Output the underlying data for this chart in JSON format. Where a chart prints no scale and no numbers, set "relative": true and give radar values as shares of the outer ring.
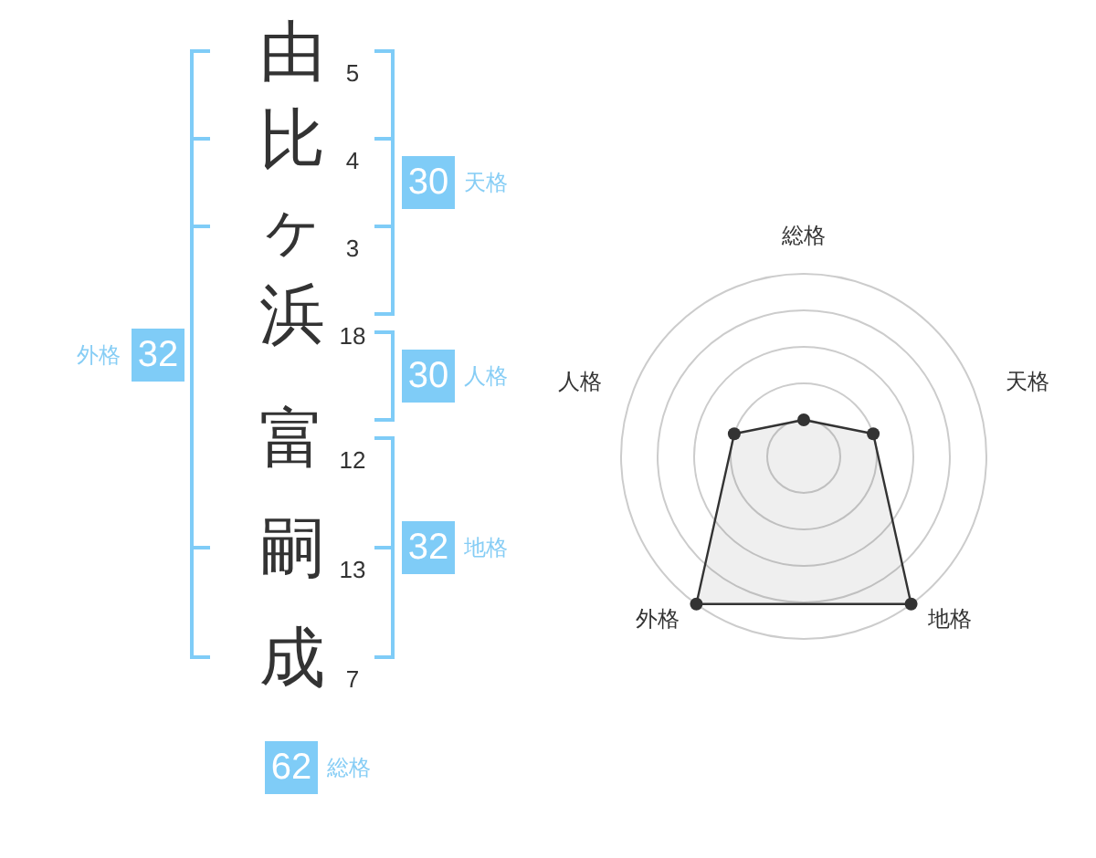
{
  "chart_data": [
    {
      "type": "other",
      "categories": [
        "由",
        "比",
        "ヶ",
        "浜",
        "富",
        "嗣",
        "成"
      ],
      "values": [
        5,
        4,
        3,
        18,
        12,
        13,
        7
      ],
      "data_labels": true,
      "annotations": [
        "30",
        "天格",
        "30",
        "人格",
        "32",
        "地格",
        "32",
        "外格",
        "62",
        "総格"
      ]
    },
    {
      "type": "radar",
      "categories": [
        "総格",
        "天格",
        "地格",
        "外格",
        "人格"
      ],
      "relative": true,
      "grid": true,
      "marker": "circle",
      "series": [
        {
          "color": "#333333",
          "values": [
            0.2,
            0.4,
            1,
            1,
            0.4
          ]
        }
      ]
    }
  ]
}
